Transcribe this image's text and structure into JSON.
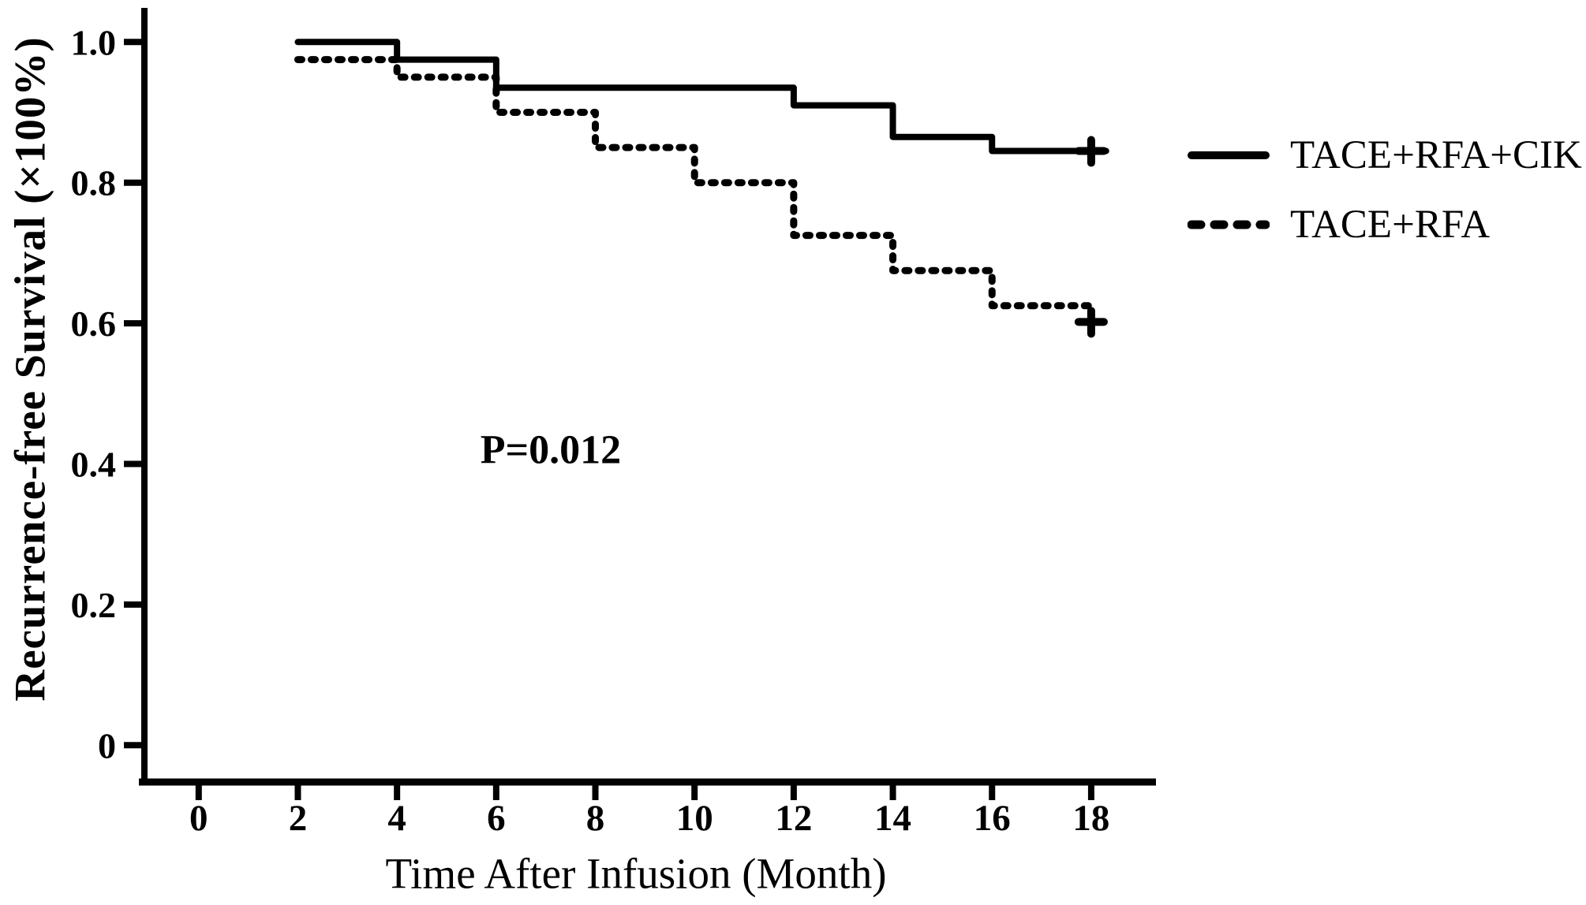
{
  "figure": {
    "background": "#ffffff",
    "ink_color": "#000000"
  },
  "chart_data": {
    "type": "line",
    "subtype": "kaplan-meier-step",
    "title": "",
    "xlabel": "Time After Infusion (Month)",
    "ylabel": "Recurrence-free Survival (×100%)",
    "xlim": [
      0,
      18
    ],
    "ylim": [
      0,
      1.0
    ],
    "grid": false,
    "legend_position": "upper-right-outside",
    "axis_color": "#000000",
    "x_ticks": [
      {
        "value": 0,
        "label": "0"
      },
      {
        "value": 2,
        "label": "2"
      },
      {
        "value": 4,
        "label": "4"
      },
      {
        "value": 6,
        "label": "6"
      },
      {
        "value": 8,
        "label": "8"
      },
      {
        "value": 10,
        "label": "10"
      },
      {
        "value": 12,
        "label": "12"
      },
      {
        "value": 14,
        "label": "14"
      },
      {
        "value": 16,
        "label": "16"
      },
      {
        "value": 18,
        "label": "18"
      }
    ],
    "y_ticks": [
      {
        "value": 1.0,
        "label": "1.0"
      },
      {
        "value": 0.8,
        "label": "0.8"
      },
      {
        "value": 0.6,
        "label": "0.6"
      },
      {
        "value": 0.4,
        "label": "0.4"
      },
      {
        "value": 0.2,
        "label": "0.2"
      },
      {
        "value": 0.0,
        "label": "0"
      }
    ],
    "annotation": {
      "text": "P=0.012",
      "x": 7.1,
      "y": 0.42
    },
    "series": [
      {
        "name": "TACE+RFA+CIK",
        "style": "solid",
        "color": "#000000",
        "x_end": 18.3,
        "steps": [
          {
            "x": 2,
            "y": 1.0
          },
          {
            "x": 4,
            "y": 0.975
          },
          {
            "x": 6,
            "y": 0.935
          },
          {
            "x": 12,
            "y": 0.91
          },
          {
            "x": 14,
            "y": 0.865
          },
          {
            "x": 16,
            "y": 0.845
          }
        ],
        "censors": [
          {
            "x": 18,
            "y": 0.845
          }
        ]
      },
      {
        "name": "TACE+RFA",
        "style": "dashed",
        "color": "#000000",
        "x_end": 18,
        "steps": [
          {
            "x": 2,
            "y": 0.975
          },
          {
            "x": 4,
            "y": 0.95
          },
          {
            "x": 6,
            "y": 0.9
          },
          {
            "x": 8,
            "y": 0.85
          },
          {
            "x": 10,
            "y": 0.8
          },
          {
            "x": 12,
            "y": 0.725
          },
          {
            "x": 14,
            "y": 0.675
          },
          {
            "x": 16,
            "y": 0.625
          },
          {
            "x": 18,
            "y": 0.6
          }
        ],
        "censors": [
          {
            "x": 18,
            "y": 0.602
          }
        ]
      }
    ]
  }
}
